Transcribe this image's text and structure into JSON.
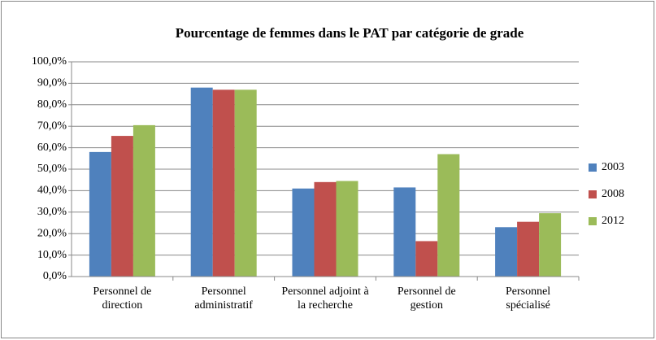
{
  "chart_data": {
    "type": "bar",
    "title": "Pourcentage de femmes dans le PAT par catégorie de grade",
    "categories": [
      "Personnel de direction",
      "Personnel administratif",
      "Personnel adjoint à la recherche",
      "Personnel de gestion",
      "Personnel spécialisé"
    ],
    "series": [
      {
        "name": "2003",
        "color": "#4f81bd",
        "values": [
          58,
          88,
          41,
          41.5,
          23
        ]
      },
      {
        "name": "2008",
        "color": "#c0504d",
        "values": [
          65.5,
          87,
          44,
          16.5,
          25.5
        ]
      },
      {
        "name": "2012",
        "color": "#9bbb59",
        "values": [
          70.5,
          87,
          44.5,
          57,
          29.5
        ]
      }
    ],
    "ylim": [
      0,
      100
    ],
    "yticks": [
      {
        "value": 0,
        "label": "0,0%"
      },
      {
        "value": 10,
        "label": "10,0%"
      },
      {
        "value": 20,
        "label": "20,0%"
      },
      {
        "value": 30,
        "label": "30,0%"
      },
      {
        "value": 40,
        "label": "40,0%"
      },
      {
        "value": 50,
        "label": "50,0%"
      },
      {
        "value": 60,
        "label": "60,0%"
      },
      {
        "value": 70,
        "label": "70,0%"
      },
      {
        "value": 80,
        "label": "80,0%"
      },
      {
        "value": 90,
        "label": "90,0%"
      },
      {
        "value": 100,
        "label": "100,0%"
      }
    ],
    "grid": true,
    "legend": "right"
  }
}
